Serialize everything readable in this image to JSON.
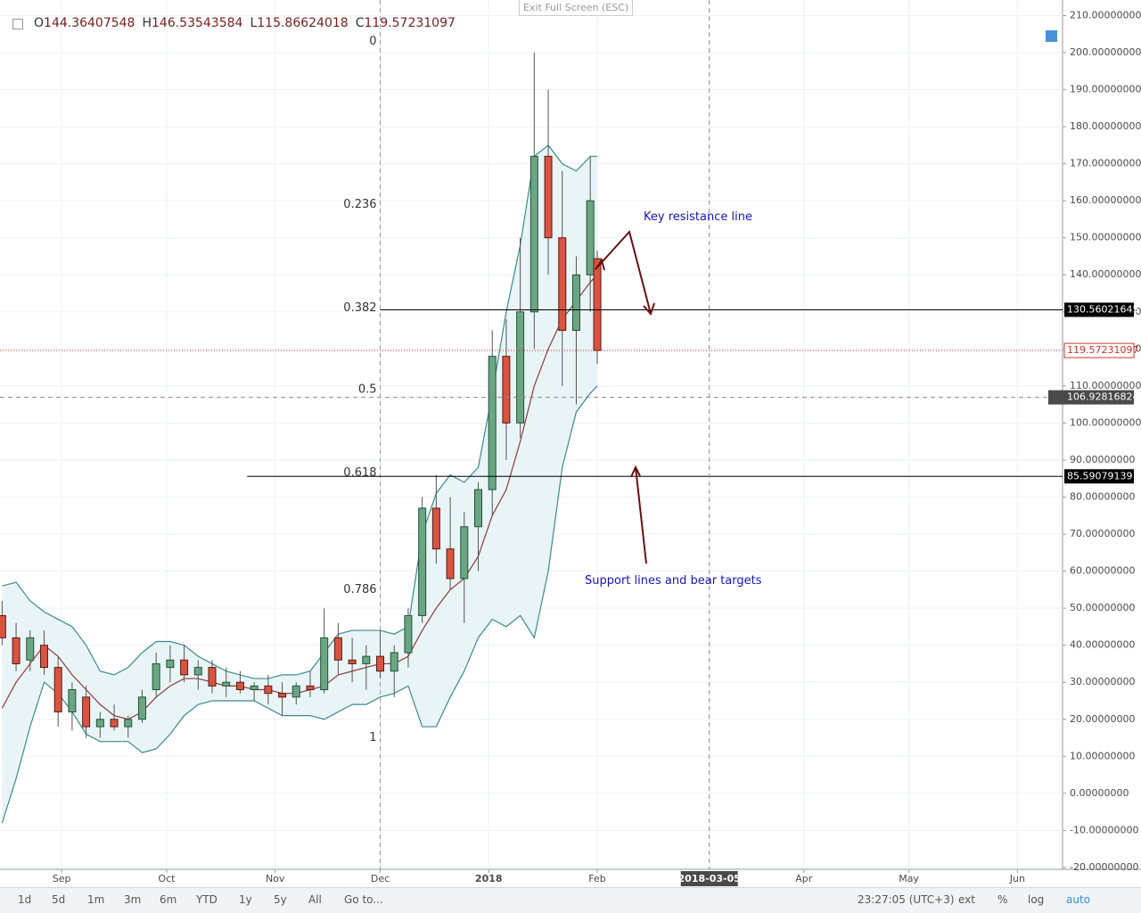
{
  "header": {
    "labels": [
      "O",
      "H",
      "L",
      "C"
    ],
    "exit": "Exit Full Screen (ESC)"
  },
  "toolbar": {
    "ranges": [
      "1d",
      "5d",
      "1m",
      "3m",
      "6m",
      "YTD",
      "1y",
      "5y",
      "All"
    ],
    "goto": "Go to...",
    "time": "23:27:05 (UTC+3)",
    "options": [
      "ext",
      "%",
      "log",
      "auto"
    ]
  },
  "chart_data": {
    "type": "candlestick",
    "x": [
      -17,
      -13,
      -9,
      -5,
      -1,
      3,
      7,
      11,
      15,
      19,
      23,
      27,
      31,
      35,
      39,
      43,
      47,
      51,
      55,
      59,
      63,
      67,
      71,
      75,
      79,
      83,
      87,
      91,
      95,
      99,
      103,
      107,
      111,
      115,
      119,
      123,
      127,
      131,
      135,
      139,
      143,
      147,
      151,
      153
    ],
    "open": [
      48,
      42,
      36,
      40,
      34,
      22,
      26,
      18,
      20,
      18,
      20,
      28,
      34,
      36,
      32,
      34,
      29,
      30,
      28,
      29,
      27,
      26,
      29,
      28,
      42,
      36,
      35,
      37,
      33,
      38,
      48,
      77,
      66,
      58,
      72,
      82,
      118,
      100,
      130,
      172,
      150,
      125,
      140,
      144.36407548
    ],
    "high": [
      52,
      46,
      44,
      44,
      37,
      30,
      29,
      22,
      24,
      21,
      28,
      38,
      40,
      40,
      36,
      36,
      34,
      33,
      30,
      32,
      30,
      30,
      33,
      50,
      46,
      42,
      40,
      44,
      40,
      50,
      80,
      86,
      80,
      76,
      84,
      125,
      128,
      150,
      200,
      190,
      168,
      145,
      172,
      146.53543584
    ],
    "low": [
      40,
      33,
      33,
      32,
      18,
      17,
      15,
      15,
      17,
      15,
      19,
      26,
      30,
      30,
      28,
      27,
      26,
      27,
      25,
      24,
      21,
      24,
      26,
      27,
      32,
      30,
      28,
      31,
      26,
      34,
      46,
      62,
      55,
      46,
      60,
      75,
      90,
      96,
      120,
      140,
      110,
      105,
      130,
      115.86624018
    ],
    "close": [
      42,
      35,
      42,
      34,
      22,
      28,
      18,
      20,
      18,
      20,
      26,
      35,
      36,
      32,
      34,
      29,
      30,
      28,
      29,
      27,
      26,
      29,
      28,
      42,
      36,
      35,
      37,
      33,
      38,
      48,
      77,
      66,
      58,
      72,
      82,
      118,
      100,
      130,
      172,
      150,
      125,
      140,
      160,
      119.57231097
    ],
    "up_color": "#6ba583",
    "down_color": "#d75442",
    "overlays": [
      {
        "color": "#3d8a8e",
        "values": [
          56,
          57,
          52,
          49,
          47,
          45,
          40,
          33,
          32,
          34,
          38,
          41,
          41,
          40,
          37,
          35,
          33,
          32,
          31,
          31,
          32,
          32,
          33,
          38,
          43,
          44,
          44,
          44,
          43,
          45,
          70,
          81,
          86,
          84,
          88,
          108,
          130,
          148,
          172,
          175,
          170,
          168,
          172,
          172
        ]
      },
      {
        "color": "#8e3b3b",
        "values": [
          23,
          30,
          35,
          40,
          37,
          32,
          28,
          24,
          21,
          20,
          22,
          26,
          29,
          31,
          31,
          30,
          29,
          29,
          28,
          28,
          27,
          27,
          28,
          29,
          32,
          33,
          34,
          35,
          35,
          37,
          44,
          50,
          55,
          58,
          64,
          75,
          82,
          95,
          110,
          120,
          128,
          133,
          138,
          140
        ]
      },
      {
        "color": "#3d8a8e",
        "values": [
          -8,
          4,
          18,
          30,
          27,
          22,
          16,
          14,
          14,
          14,
          11,
          12,
          16,
          21,
          24,
          25,
          25,
          25,
          25,
          23,
          21,
          21,
          21,
          20,
          22,
          24,
          24,
          26,
          27,
          29,
          18,
          18,
          26,
          33,
          42,
          47,
          45,
          48,
          42,
          60,
          88,
          103,
          108,
          110
        ]
      }
    ],
    "band_fill": "#e8f4f6",
    "xlim": [
      -17.6,
      285.9
    ],
    "xticks": [
      {
        "value": 0,
        "label": "Sep"
      },
      {
        "value": 30,
        "label": "Oct"
      },
      {
        "value": 61,
        "label": "Nov"
      },
      {
        "value": 91,
        "label": "Dec"
      },
      {
        "value": 122,
        "label": "2018"
      },
      {
        "value": 153,
        "label": "Feb"
      },
      {
        "value": 212,
        "label": "Apr"
      },
      {
        "value": 242,
        "label": "May"
      },
      {
        "value": 273,
        "label": "Jun"
      }
    ],
    "ylim": [
      -20.5,
      214.2
    ],
    "yticks": [
      {
        "value": 210,
        "label": "210.00000000"
      },
      {
        "value": 200,
        "label": "200.00000000"
      },
      {
        "value": 190,
        "label": "190.00000000"
      },
      {
        "value": 180,
        "label": "180.00000000"
      },
      {
        "value": 170,
        "label": "170.00000000"
      },
      {
        "value": 160,
        "label": "160.00000000"
      },
      {
        "value": 150,
        "label": "150.00000000"
      },
      {
        "value": 140,
        "label": "140.00000000"
      },
      {
        "value": 130,
        "label": "130.00000000"
      },
      {
        "value": 120,
        "label": "120.00000000"
      },
      {
        "value": 110,
        "label": "110.00000000"
      },
      {
        "value": 100,
        "label": "100.00000000"
      },
      {
        "value": 90,
        "label": "90.00000000"
      },
      {
        "value": 80,
        "label": "80.00000000"
      },
      {
        "value": 70,
        "label": "70.00000000"
      },
      {
        "value": 60,
        "label": "60.00000000"
      },
      {
        "value": 50,
        "label": "50.00000000"
      },
      {
        "value": 40,
        "label": "40.00000000"
      },
      {
        "value": 30,
        "label": "30.00000000"
      },
      {
        "value": 20,
        "label": "20.00000000"
      },
      {
        "value": 10,
        "label": "10.00000000"
      },
      {
        "value": 0,
        "label": "0.00000000"
      },
      {
        "value": -10,
        "label": "-10.00000000"
      },
      {
        "value": -20,
        "label": "-20.00000000"
      }
    ],
    "grid": true,
    "fib": {
      "x": 91,
      "levels": [
        {
          "label": "0",
          "value": 203
        },
        {
          "label": "0.236",
          "value": 159
        },
        {
          "label": "0.382",
          "value": 131
        },
        {
          "label": "0.5",
          "value": 109
        },
        {
          "label": "0.618",
          "value": 86.5
        },
        {
          "label": "0.786",
          "value": 55
        },
        {
          "label": "1",
          "value": 15
        }
      ]
    },
    "levels": [
      {
        "from": 91,
        "value": 130.56021645,
        "label": "130.56021645"
      },
      {
        "from": 53,
        "value": 85.59079139,
        "label": "85.59079139"
      }
    ],
    "price_line": {
      "value": 119.57231097,
      "label": "119.57231097",
      "color": "#d0342c"
    },
    "crosshair": {
      "y": {
        "value": 106.92816824,
        "label": "106.92816824"
      },
      "x": {
        "value": 185,
        "label": "2018-03-05"
      }
    },
    "annotations": [
      "Key resistance line",
      "Support lines and bear targets"
    ]
  }
}
